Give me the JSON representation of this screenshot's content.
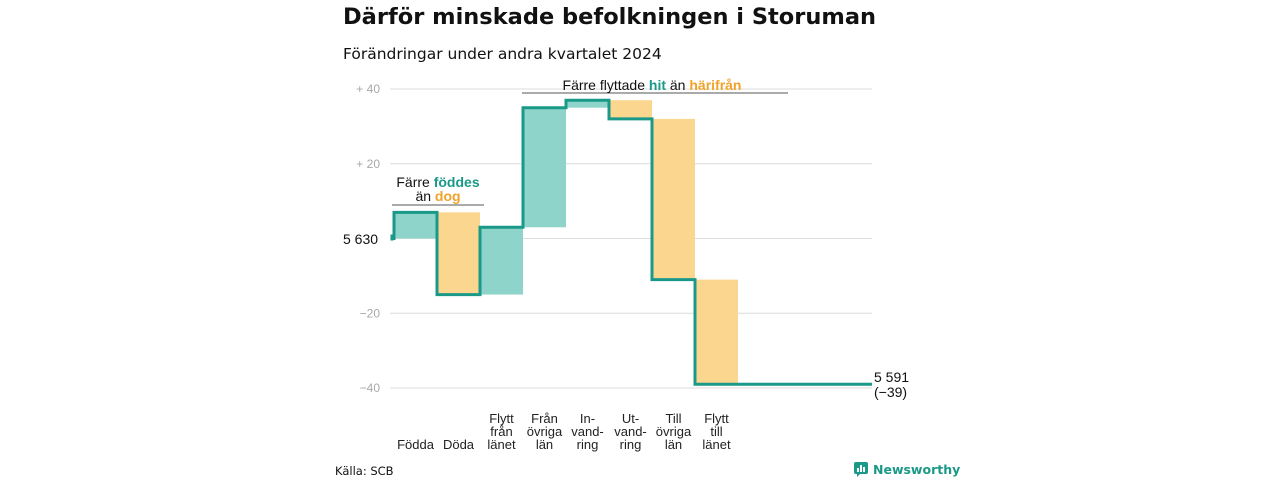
{
  "title": "Därför minskade befolkningen i Storuman",
  "subtitle": "Förändringar under andra kvartalet 2024",
  "source": "Källa: SCB",
  "brand": "Newsworthy",
  "colors": {
    "increase": "#8fd4cb",
    "decrease": "#fbd68f",
    "step_line": "#1a9988",
    "grid": "#dcdcdc",
    "accent_in": "#1a9988",
    "accent_out": "#f0a22a"
  },
  "chart_data": {
    "type": "waterfall",
    "start": {
      "label": "5 630",
      "value": 0
    },
    "end": {
      "label": "5 591",
      "sub": "(−39)",
      "value": -39
    },
    "ylim": [
      -40,
      40
    ],
    "yticks": [
      {
        "value": 40,
        "label": "+  40"
      },
      {
        "value": 20,
        "label": "+  20"
      },
      {
        "value": -20,
        "label": "−20"
      },
      {
        "value": -40,
        "label": "−40"
      }
    ],
    "steps": [
      {
        "lines": [
          "Födda"
        ],
        "delta": 7
      },
      {
        "lines": [
          "Döda"
        ],
        "delta": -22
      },
      {
        "lines": [
          "Flytt",
          "från",
          "länet"
        ],
        "delta": 18
      },
      {
        "lines": [
          "Från",
          "övriga",
          "län"
        ],
        "delta": 32
      },
      {
        "lines": [
          "In-",
          "vand-",
          "ring"
        ],
        "delta": 2
      },
      {
        "lines": [
          "Ut-",
          "vand-",
          "ring"
        ],
        "delta": -5
      },
      {
        "lines": [
          "Till",
          "övriga",
          "län"
        ],
        "delta": -43
      },
      {
        "lines": [
          "Flytt",
          "till",
          "länet"
        ],
        "delta": -28
      }
    ],
    "annotations": [
      {
        "line1_a": "Färre ",
        "line1_b": "föddes",
        "line2_a": "än ",
        "line2_b": "dog"
      },
      {
        "a": "Färre flyttade ",
        "b": "hit",
        "c": " än ",
        "d": "härifrån"
      }
    ]
  }
}
